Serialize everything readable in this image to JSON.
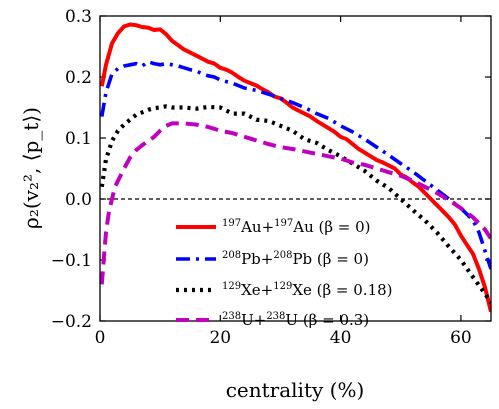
{
  "chart_data": {
    "type": "line",
    "xlabel": "centrality (%)",
    "ylabel": "ρ₂(v₂², ⟨p_t⟩)",
    "xlim": [
      0,
      65
    ],
    "ylim": [
      -0.2,
      0.3
    ],
    "xticks": [
      0,
      20,
      40,
      60
    ],
    "yticks": [
      0.3,
      0.2,
      0.1,
      0.0,
      -0.1,
      -0.2
    ],
    "xtick_labels": [
      "0",
      "20",
      "40",
      "60"
    ],
    "ytick_labels": [
      "0.3",
      "0.2",
      "0.1",
      "0.0",
      "−0.1",
      "−0.2"
    ],
    "reference_line": {
      "y": 0.0,
      "style": "dashed",
      "color": "#000000"
    },
    "legend_position": "center-right",
    "series": [
      {
        "name": "¹⁹⁷Au+¹⁹⁷Au (β = 0)",
        "legend": {
          "a": "197",
          "b": "Au+",
          "c": "197",
          "d": "Au (β = 0)"
        },
        "color": "#ff0000",
        "style": "solid",
        "x": [
          0.3,
          1,
          2,
          3,
          4,
          5,
          6,
          7,
          8,
          9,
          10,
          11,
          12,
          13,
          14,
          15,
          16,
          17,
          18,
          19,
          20,
          21,
          22,
          23,
          24,
          25,
          26,
          27,
          28,
          29,
          30,
          31,
          32,
          33,
          34,
          35,
          36,
          37,
          38,
          39,
          40,
          41,
          42,
          43,
          44,
          45,
          46,
          47,
          48,
          49,
          50,
          51,
          52,
          53,
          54,
          55,
          56,
          57,
          58,
          59,
          60,
          61,
          62,
          63,
          64,
          65
        ],
        "y": [
          0.185,
          0.22,
          0.255,
          0.272,
          0.283,
          0.286,
          0.285,
          0.282,
          0.281,
          0.277,
          0.278,
          0.27,
          0.259,
          0.252,
          0.245,
          0.24,
          0.235,
          0.23,
          0.225,
          0.222,
          0.215,
          0.212,
          0.207,
          0.2,
          0.194,
          0.19,
          0.186,
          0.18,
          0.175,
          0.168,
          0.165,
          0.158,
          0.15,
          0.145,
          0.14,
          0.135,
          0.128,
          0.122,
          0.116,
          0.11,
          0.102,
          0.098,
          0.09,
          0.082,
          0.076,
          0.07,
          0.064,
          0.06,
          0.055,
          0.05,
          0.04,
          0.035,
          0.027,
          0.02,
          0.01,
          0.0,
          -0.01,
          -0.02,
          -0.03,
          -0.042,
          -0.06,
          -0.075,
          -0.09,
          -0.115,
          -0.145,
          -0.185
        ]
      },
      {
        "name": "²⁰⁸Pb+²⁰⁸Pb (β = 0)",
        "legend": {
          "a": "208",
          "b": "Pb+",
          "c": "208",
          "d": "Pb (β = 0)"
        },
        "color": "#0000ff",
        "style": "dashdot",
        "x": [
          0.3,
          1,
          2,
          3,
          4,
          5,
          6,
          7,
          8,
          9,
          10,
          11,
          12,
          13,
          14,
          15,
          16,
          17,
          18,
          19,
          20,
          22,
          24,
          26,
          28,
          30,
          32,
          34,
          36,
          38,
          40,
          42,
          44,
          46,
          48,
          50,
          52,
          54,
          56,
          58,
          60,
          62,
          63,
          64,
          65
        ],
        "y": [
          0.135,
          0.175,
          0.205,
          0.214,
          0.218,
          0.22,
          0.222,
          0.218,
          0.225,
          0.222,
          0.22,
          0.222,
          0.22,
          0.218,
          0.215,
          0.212,
          0.21,
          0.205,
          0.202,
          0.2,
          0.195,
          0.19,
          0.182,
          0.178,
          0.172,
          0.165,
          0.158,
          0.15,
          0.14,
          0.132,
          0.12,
          0.11,
          0.098,
          0.085,
          0.072,
          0.058,
          0.045,
          0.03,
          0.015,
          0.0,
          -0.015,
          -0.035,
          -0.055,
          -0.085,
          -0.115
        ]
      },
      {
        "name": "¹²⁹Xe+¹²⁹Xe (β = 0.18)",
        "legend": {
          "a": "129",
          "b": "Xe+",
          "c": "129",
          "d": "Xe (β = 0.18)"
        },
        "color": "#000000",
        "style": "dotted",
        "x": [
          0.3,
          1,
          2,
          3,
          4,
          5,
          6,
          7,
          8,
          9,
          10,
          11,
          12,
          14,
          16,
          18,
          20,
          22,
          24,
          26,
          28,
          30,
          32,
          34,
          36,
          38,
          40,
          42,
          44,
          46,
          48,
          50,
          52,
          54,
          56,
          58,
          60,
          62,
          64,
          65
        ],
        "y": [
          0.02,
          0.065,
          0.095,
          0.112,
          0.122,
          0.13,
          0.138,
          0.142,
          0.146,
          0.149,
          0.15,
          0.152,
          0.15,
          0.15,
          0.148,
          0.151,
          0.15,
          0.14,
          0.14,
          0.13,
          0.128,
          0.12,
          0.112,
          0.098,
          0.092,
          0.08,
          0.07,
          0.058,
          0.046,
          0.03,
          0.018,
          0.0,
          -0.018,
          -0.035,
          -0.055,
          -0.078,
          -0.1,
          -0.128,
          -0.155,
          -0.17
        ]
      },
      {
        "name": "²³⁸U+²³⁸U (β = 0.3)",
        "legend": {
          "a": "238",
          "b": "U+",
          "c": "238",
          "d": "U (β = 0.3)"
        },
        "color": "#bf00bf",
        "style": "dashed",
        "x": [
          0.3,
          0.7,
          1,
          1.5,
          2,
          2.5,
          3,
          4,
          5,
          6,
          7,
          8,
          9,
          10,
          11,
          12,
          14,
          16,
          18,
          20,
          22,
          24,
          26,
          28,
          30,
          32,
          34,
          36,
          38,
          40,
          42,
          44,
          46,
          48,
          50,
          52,
          54,
          56,
          58,
          60,
          62,
          64,
          65
        ],
        "y": [
          -0.14,
          -0.09,
          -0.055,
          -0.02,
          0.0,
          0.02,
          0.03,
          0.05,
          0.068,
          0.08,
          0.088,
          0.095,
          0.102,
          0.112,
          0.12,
          0.124,
          0.124,
          0.122,
          0.118,
          0.112,
          0.108,
          0.102,
          0.096,
          0.09,
          0.085,
          0.082,
          0.078,
          0.074,
          0.07,
          0.066,
          0.06,
          0.056,
          0.05,
          0.044,
          0.038,
          0.03,
          0.02,
          0.01,
          -0.002,
          -0.015,
          -0.03,
          -0.05,
          -0.065
        ]
      }
    ]
  }
}
